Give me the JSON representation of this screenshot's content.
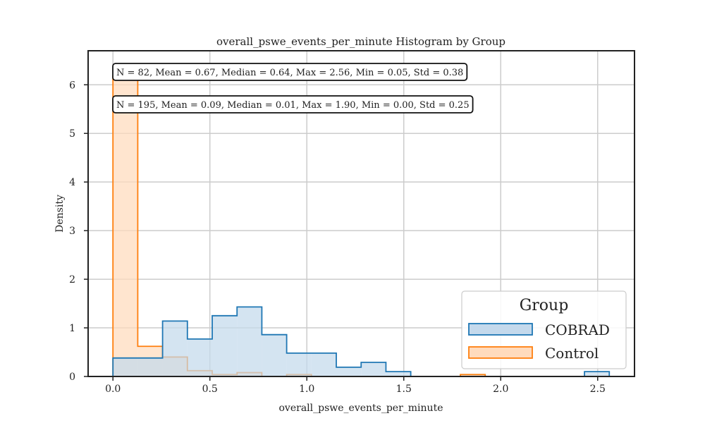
{
  "chart_data": {
    "type": "histogram",
    "title": "overall_pswe_events_per_minute Histogram by Group",
    "xlabel": "overall_pswe_events_per_minute",
    "ylabel": "Density",
    "xlim": [
      -0.128,
      2.69
    ],
    "ylim": [
      0,
      6.7
    ],
    "xticks": [
      0.0,
      0.5,
      1.0,
      1.5,
      2.0,
      2.5
    ],
    "xtick_labels": [
      "0.0",
      "0.5",
      "1.0",
      "1.5",
      "2.0",
      "2.5"
    ],
    "yticks": [
      0,
      1,
      2,
      3,
      4,
      5,
      6
    ],
    "ytick_labels": [
      "0",
      "1",
      "2",
      "3",
      "4",
      "5",
      "6"
    ],
    "grid": true,
    "legend": {
      "title": "Group",
      "position": "lower-right"
    },
    "bin_width": 0.128,
    "bin_start": 0.0,
    "series": [
      {
        "name": "COBRAD",
        "color": "#1f77b4",
        "fill": "#c4d9ec",
        "densities": [
          0.38,
          0.38,
          1.14,
          0.77,
          1.25,
          1.43,
          0.86,
          0.48,
          0.48,
          0.19,
          0.29,
          0.1,
          0,
          0,
          0,
          0,
          0,
          0,
          0,
          0.1
        ],
        "stats": "N = 82, Mean = 0.67, Median = 0.64, Max = 2.56, Min = 0.05, Std = 0.38"
      },
      {
        "name": "Control",
        "color": "#ff7f0e",
        "fill": "#ffdbbd",
        "densities": [
          6.18,
          0.62,
          0.4,
          0.12,
          0.04,
          0.08,
          0,
          0.04,
          0,
          0,
          0,
          0,
          0,
          0,
          0.04
        ],
        "stats": "N = 195, Mean = 0.09, Median = 0.01, Max = 1.90, Min = 0.00, Std = 0.25"
      }
    ]
  }
}
